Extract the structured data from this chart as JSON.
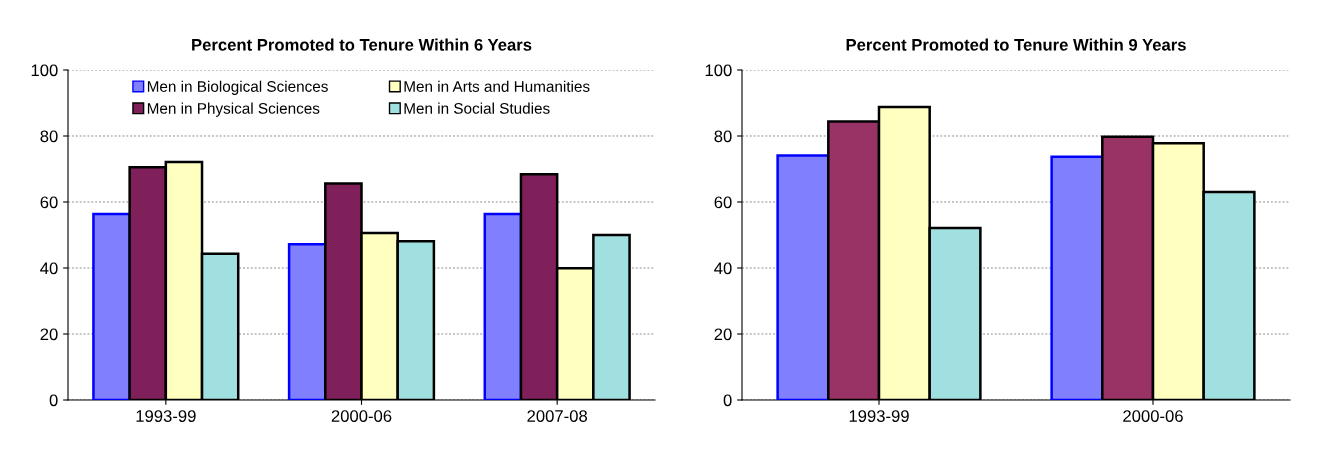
{
  "chart_data": [
    {
      "type": "bar",
      "title": "Percent Promoted to Tenure Within 6 Years",
      "categories": [
        "1993-99",
        "2000-06",
        "2007-08"
      ],
      "series": [
        {
          "name": "Men in Biological Sciences",
          "color": "#8080ff",
          "values": [
            56.4,
            47.2,
            56.4
          ]
        },
        {
          "name": "Men in Physical Sciences",
          "color": "#80205a",
          "values": [
            70.5,
            65.6,
            68.4
          ]
        },
        {
          "name": "Men in Arts and Humanities",
          "color": "#ffffc0",
          "values": [
            72.1,
            50.6,
            39.9
          ]
        },
        {
          "name": "Men in Social Studies",
          "color": "#a0e0e0",
          "values": [
            44.3,
            48.1,
            50.0
          ]
        }
      ],
      "ylim": [
        0,
        100
      ],
      "yticks": [
        0,
        20,
        40,
        60,
        80,
        100
      ],
      "grid": "y",
      "legend": "top"
    },
    {
      "type": "bar",
      "title": "Percent Promoted to Tenure Within 9 Years",
      "categories": [
        "1993-99",
        "2000-06"
      ],
      "series": [
        {
          "color": "#8080ff",
          "values": [
            74.1,
            73.7
          ]
        },
        {
          "color": "#993366",
          "values": [
            84.4,
            79.8
          ]
        },
        {
          "color": "#ffffc0",
          "values": [
            88.8,
            77.8
          ]
        },
        {
          "color": "#a0e0e0",
          "values": [
            52.1,
            63.0
          ]
        }
      ],
      "ylim": [
        0,
        100
      ],
      "yticks": [
        0,
        20,
        40,
        60,
        80,
        100
      ],
      "grid": "y"
    }
  ]
}
